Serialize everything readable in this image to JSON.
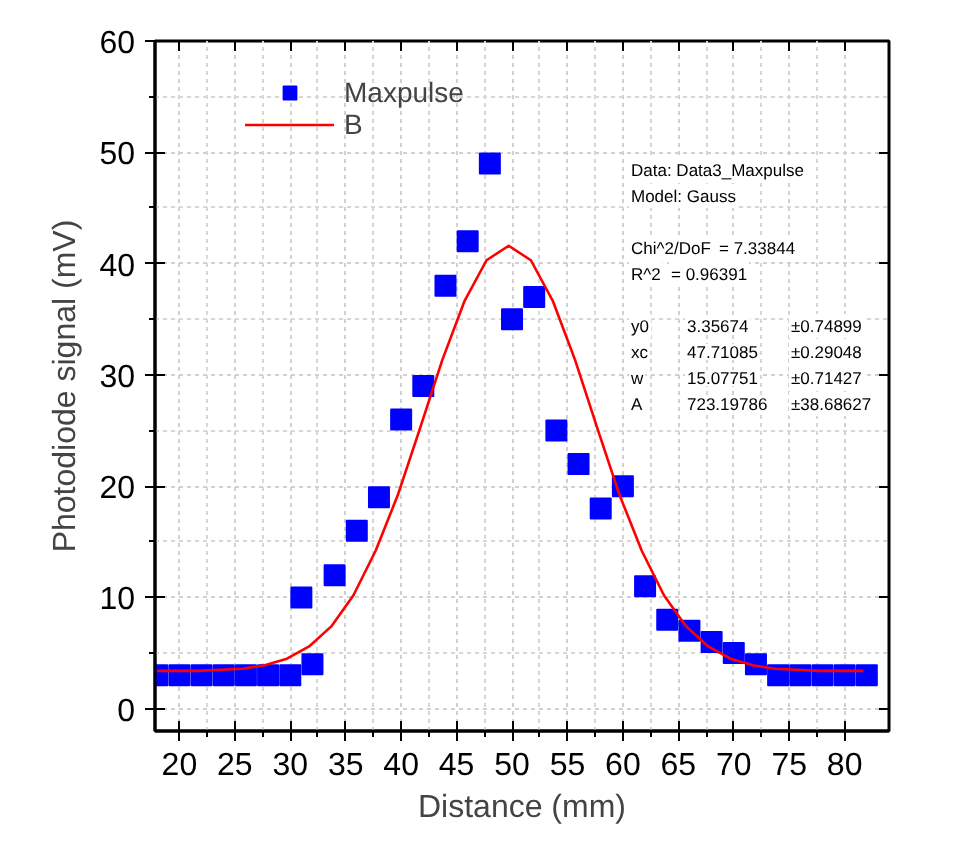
{
  "chart_data": {
    "type": "scatter",
    "xlabel": "Distance (mm)",
    "ylabel": "Photodiode signal (mV)",
    "xlim": [
      17.8,
      84
    ],
    "ylim": [
      -2,
      60
    ],
    "xticks": [
      20,
      25,
      30,
      35,
      40,
      45,
      50,
      55,
      60,
      65,
      70,
      75,
      80
    ],
    "yticks": [
      0,
      10,
      20,
      30,
      40,
      50,
      60
    ],
    "grid": true,
    "legend": "top left",
    "line_style": "solid",
    "series": [
      {
        "name": "Maxpulse",
        "marker": "square",
        "color": "#0000ff",
        "x": [
          18,
          20,
          22,
          24,
          26,
          28,
          30,
          31,
          32,
          34,
          36,
          38,
          40,
          42,
          44,
          46,
          48,
          50,
          52,
          54,
          56,
          58,
          60,
          62,
          64,
          66,
          68,
          70,
          72,
          74,
          76,
          78,
          80,
          82
        ],
        "values": [
          3,
          3,
          3,
          3,
          3,
          3,
          3,
          10,
          4,
          12,
          16,
          19,
          26,
          29,
          38,
          42,
          49,
          35,
          37,
          25,
          22,
          18,
          20,
          11,
          8,
          7,
          6,
          5,
          4,
          3,
          3,
          3,
          3,
          3
        ]
      },
      {
        "name": "B",
        "type": "line",
        "color": "#ff0000",
        "x": [
          18,
          19.7,
          21.7,
          23.7,
          25.7,
          27.7,
          29.7,
          31.7,
          33.7,
          35.7,
          37.7,
          39.7,
          41.7,
          43.7,
          45.7,
          47.7,
          49.7,
          51.7,
          53.7,
          55.7,
          57.7,
          59.7,
          61.7,
          63.7,
          65.7,
          67.7,
          69.7,
          71.7,
          73.7,
          75.7,
          77.7,
          79.7,
          81.7
        ],
        "values": [
          3.4,
          3.4,
          3.4,
          3.5,
          3.6,
          3.9,
          4.5,
          5.6,
          7.4,
          10.2,
          14.2,
          19.2,
          25.2,
          31.3,
          36.6,
          40.3,
          41.6,
          40.3,
          36.6,
          31.3,
          25.2,
          19.2,
          14.2,
          10.2,
          7.4,
          5.6,
          4.5,
          3.9,
          3.6,
          3.5,
          3.4,
          3.4,
          3.4
        ]
      }
    ],
    "annotations": [
      "Data: Data3_Maxpulse",
      "Model: Gauss",
      "Chi^2/DoF  = 7.33844",
      "R^2  = 0.96391",
      "y0  3.35674  ±0.74899",
      "xc  47.71085  ±0.29048",
      "w  15.07751  ±0.71427",
      "A  723.19786  ±38.68627"
    ]
  }
}
